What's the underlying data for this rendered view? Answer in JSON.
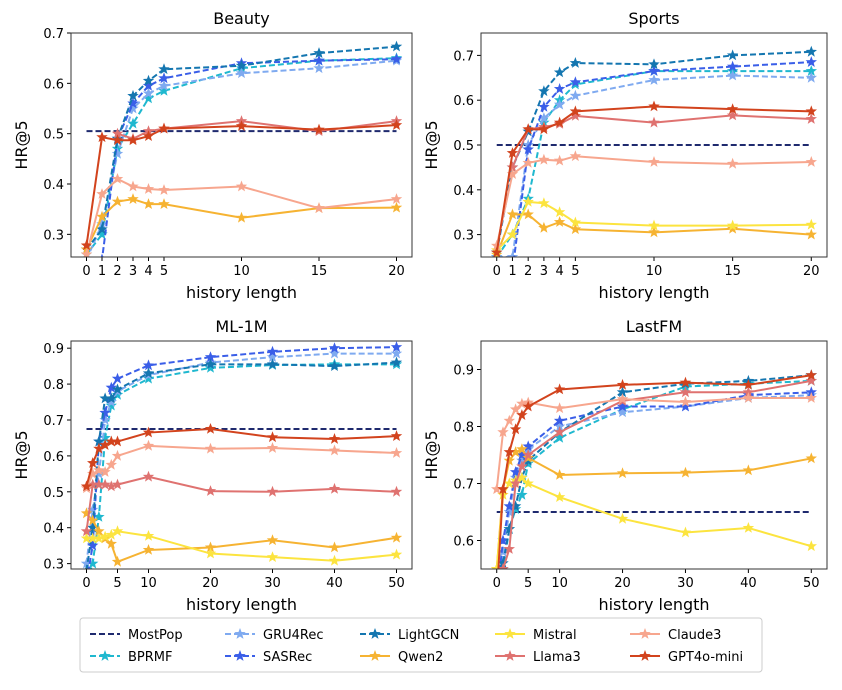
{
  "chart_data": [
    {
      "type": "line",
      "title": "Beauty",
      "xlabel": "history length",
      "ylabel": "HR@5",
      "x": [
        0,
        1,
        2,
        3,
        4,
        5,
        10,
        15,
        20
      ],
      "xticks": [
        0,
        1,
        2,
        3,
        4,
        5,
        10,
        15,
        20
      ],
      "xlim": [
        -1,
        21
      ],
      "yticks": [
        0.3,
        0.4,
        0.5,
        0.6,
        0.7
      ],
      "ylim": [
        0.255,
        0.7
      ],
      "series": [
        {
          "name": "MostPop",
          "values": [
            0.505,
            0.505,
            0.505,
            0.505,
            0.505,
            0.505,
            0.505,
            0.505,
            0.505
          ]
        },
        {
          "name": "BPRMF",
          "values": [
            0.26,
            0.3,
            0.47,
            0.52,
            0.57,
            0.585,
            0.63,
            0.645,
            0.65
          ]
        },
        {
          "name": "GRU4Rec",
          "values": [
            0.25,
            0.32,
            0.46,
            0.55,
            0.58,
            0.595,
            0.62,
            0.63,
            0.645
          ]
        },
        {
          "name": "SASRec",
          "values": [
            0.2,
            0.25,
            0.49,
            0.56,
            0.595,
            0.61,
            0.64,
            0.645,
            0.648
          ]
        },
        {
          "name": "LightGCN",
          "values": [
            0.27,
            0.31,
            0.49,
            0.575,
            0.605,
            0.628,
            0.635,
            0.66,
            0.673
          ]
        },
        {
          "name": "Qwen2",
          "values": [
            0.27,
            0.335,
            0.365,
            0.37,
            0.36,
            0.36,
            0.333,
            0.352,
            0.353
          ]
        },
        {
          "name": "Mistral",
          "values": [
            null,
            null,
            null,
            null,
            null,
            null,
            null,
            null,
            null
          ]
        },
        {
          "name": "Llama3",
          "values": [
            null,
            null,
            0.5,
            0.49,
            0.505,
            0.51,
            0.525,
            0.505,
            0.525
          ]
        },
        {
          "name": "Claude3",
          "values": [
            0.26,
            0.38,
            0.41,
            0.395,
            0.39,
            0.388,
            0.395,
            0.352,
            0.37
          ]
        },
        {
          "name": "GPT4o-mini",
          "values": [
            0.278,
            0.493,
            0.487,
            0.487,
            0.495,
            0.51,
            0.515,
            0.508,
            0.517
          ]
        }
      ]
    },
    {
      "type": "line",
      "title": "Sports",
      "xlabel": "history length",
      "ylabel": "HR@5",
      "x": [
        0,
        1,
        2,
        3,
        4,
        5,
        10,
        15,
        20
      ],
      "xticks": [
        0,
        1,
        2,
        3,
        4,
        5,
        10,
        15,
        20
      ],
      "xlim": [
        -1,
        21
      ],
      "yticks": [
        0.3,
        0.4,
        0.5,
        0.6,
        0.7
      ],
      "ylim": [
        0.25,
        0.75
      ],
      "series": [
        {
          "name": "MostPop",
          "values": [
            0.5,
            0.5,
            0.5,
            0.5,
            0.5,
            0.5,
            0.5,
            0.5,
            0.5
          ]
        },
        {
          "name": "BPRMF",
          "values": [
            0.25,
            0.3,
            0.38,
            0.55,
            0.6,
            0.635,
            0.665,
            0.665,
            0.665
          ]
        },
        {
          "name": "GRU4Rec",
          "values": [
            0.25,
            0.25,
            0.5,
            0.56,
            0.59,
            0.61,
            0.645,
            0.655,
            0.65
          ]
        },
        {
          "name": "SASRec",
          "values": [
            0.2,
            0.22,
            0.49,
            0.585,
            0.625,
            0.64,
            0.665,
            0.675,
            0.685
          ]
        },
        {
          "name": "LightGCN",
          "values": [
            0.26,
            0.45,
            0.53,
            0.62,
            0.662,
            0.683,
            0.68,
            0.7,
            0.708
          ]
        },
        {
          "name": "Qwen2",
          "values": [
            0.255,
            0.345,
            0.345,
            0.315,
            0.328,
            0.312,
            0.305,
            0.313,
            0.3
          ]
        },
        {
          "name": "Mistral",
          "values": [
            0.265,
            0.3,
            0.373,
            0.37,
            0.35,
            0.327,
            0.32,
            0.32,
            0.322
          ]
        },
        {
          "name": "Llama3",
          "values": [
            null,
            0.45,
            0.535,
            0.54,
            0.547,
            0.565,
            0.55,
            0.566,
            0.558
          ]
        },
        {
          "name": "Claude3",
          "values": [
            0.275,
            0.435,
            0.46,
            0.467,
            0.465,
            0.475,
            0.462,
            0.458,
            0.462
          ]
        },
        {
          "name": "GPT4o-mini",
          "values": [
            0.26,
            0.482,
            0.535,
            0.535,
            0.55,
            0.575,
            0.586,
            0.58,
            0.575
          ]
        }
      ]
    },
    {
      "type": "line",
      "title": "ML-1M",
      "xlabel": "history length",
      "ylabel": "HR@5",
      "x": [
        0,
        1,
        2,
        3,
        4,
        5,
        10,
        20,
        30,
        40,
        50
      ],
      "xticks": [
        0,
        5,
        10,
        20,
        30,
        40,
        50
      ],
      "xlim": [
        -2.5,
        52.5
      ],
      "yticks": [
        0.3,
        0.4,
        0.5,
        0.6,
        0.7,
        0.8,
        0.9
      ],
      "ylim": [
        0.285,
        0.92
      ],
      "series": [
        {
          "name": "MostPop",
          "values": [
            0.675,
            0.675,
            0.675,
            0.675,
            0.675,
            0.675,
            0.675,
            0.675,
            0.675,
            0.675,
            0.675
          ]
        },
        {
          "name": "BPRMF",
          "values": [
            0.25,
            0.3,
            0.43,
            0.65,
            0.74,
            0.77,
            0.815,
            0.845,
            0.853,
            0.855,
            0.855
          ]
        },
        {
          "name": "GRU4Rec",
          "values": [
            0.3,
            0.45,
            0.55,
            0.7,
            0.75,
            0.78,
            0.825,
            0.86,
            0.875,
            0.885,
            0.885
          ]
        },
        {
          "name": "SASRec",
          "values": [
            0.25,
            0.35,
            0.64,
            0.72,
            0.79,
            0.815,
            0.852,
            0.875,
            0.89,
            0.9,
            0.903
          ]
        },
        {
          "name": "LightGCN",
          "values": [
            0.28,
            0.4,
            0.64,
            0.76,
            0.76,
            0.785,
            0.83,
            0.855,
            0.855,
            0.85,
            0.86
          ]
        },
        {
          "name": "Qwen2",
          "values": [
            0.44,
            0.42,
            0.39,
            0.37,
            0.355,
            0.305,
            0.338,
            0.345,
            0.365,
            0.345,
            0.372
          ]
        },
        {
          "name": "Mistral",
          "values": [
            0.37,
            0.37,
            0.37,
            0.375,
            0.38,
            0.39,
            0.377,
            0.328,
            0.318,
            0.308,
            0.325
          ]
        },
        {
          "name": "Llama3",
          "values": [
            0.39,
            0.52,
            0.52,
            0.52,
            0.515,
            0.52,
            0.542,
            0.502,
            0.5,
            0.508,
            0.5
          ]
        },
        {
          "name": "Claude3",
          "values": [
            0.51,
            0.55,
            0.56,
            0.555,
            0.575,
            0.6,
            0.628,
            0.62,
            0.622,
            0.615,
            0.608
          ]
        },
        {
          "name": "GPT4o-mini",
          "values": [
            0.515,
            0.58,
            0.62,
            0.63,
            0.64,
            0.64,
            0.665,
            0.675,
            0.652,
            0.647,
            0.655
          ]
        }
      ]
    },
    {
      "type": "line",
      "title": "LastFM",
      "xlabel": "history length",
      "ylabel": "HR@5",
      "x": [
        0,
        1,
        2,
        3,
        4,
        5,
        10,
        20,
        30,
        40,
        50
      ],
      "xticks": [
        0,
        5,
        10,
        20,
        30,
        40,
        50
      ],
      "xlim": [
        -2.5,
        52.5
      ],
      "yticks": [
        0.6,
        0.7,
        0.8,
        0.9
      ],
      "ylim": [
        0.55,
        0.95
      ],
      "series": [
        {
          "name": "MostPop",
          "values": [
            0.65,
            0.65,
            0.65,
            0.65,
            0.65,
            0.65,
            0.65,
            0.65,
            0.65,
            0.65,
            0.65
          ]
        },
        {
          "name": "BPRMF",
          "values": [
            0.5,
            0.55,
            0.62,
            0.655,
            0.68,
            0.735,
            0.78,
            0.83,
            0.87,
            0.875,
            0.88
          ]
        },
        {
          "name": "GRU4Rec",
          "values": [
            0.5,
            0.58,
            0.65,
            0.71,
            0.74,
            0.76,
            0.8,
            0.825,
            0.835,
            0.85,
            0.855
          ]
        },
        {
          "name": "SASRec",
          "values": [
            0.5,
            0.6,
            0.66,
            0.72,
            0.75,
            0.765,
            0.81,
            0.835,
            0.835,
            0.855,
            0.86
          ]
        },
        {
          "name": "LightGCN",
          "values": [
            0.5,
            0.56,
            0.62,
            0.66,
            0.71,
            0.74,
            0.79,
            0.86,
            0.875,
            0.88,
            0.89
          ]
        },
        {
          "name": "Qwen2",
          "values": [
            0.55,
            0.69,
            0.74,
            0.755,
            0.76,
            0.745,
            0.715,
            0.718,
            0.719,
            0.723,
            0.744
          ]
        },
        {
          "name": "Mistral",
          "values": [
            0.55,
            0.68,
            0.7,
            0.705,
            0.71,
            0.7,
            0.676,
            0.638,
            0.614,
            0.622,
            0.59
          ]
        },
        {
          "name": "Llama3",
          "values": [
            0.5,
            0.55,
            0.585,
            0.7,
            0.73,
            0.75,
            0.79,
            0.845,
            0.86,
            0.86,
            0.88
          ]
        },
        {
          "name": "Claude3",
          "values": [
            0.69,
            0.79,
            0.81,
            0.83,
            0.84,
            0.842,
            0.832,
            0.848,
            0.843,
            0.85,
            0.85
          ]
        },
        {
          "name": "GPT4o-mini",
          "values": [
            0.5,
            0.69,
            0.755,
            0.795,
            0.82,
            0.835,
            0.865,
            0.873,
            0.877,
            0.873,
            0.89
          ]
        }
      ]
    }
  ],
  "legend": {
    "placement": "bottom",
    "items": [
      {
        "name": "MostPop",
        "color": "#1f2a6e",
        "dashed": true,
        "marker": false
      },
      {
        "name": "BPRMF",
        "color": "#1fb8cf",
        "dashed": true,
        "marker": true
      },
      {
        "name": "GRU4Rec",
        "color": "#7faaf0",
        "dashed": true,
        "marker": true
      },
      {
        "name": "SASRec",
        "color": "#3a5ee8",
        "dashed": true,
        "marker": true
      },
      {
        "name": "LightGCN",
        "color": "#1476b0",
        "dashed": true,
        "marker": true
      },
      {
        "name": "Qwen2",
        "color": "#f6b332",
        "dashed": false,
        "marker": true
      },
      {
        "name": "Mistral",
        "color": "#fce43f",
        "dashed": false,
        "marker": true
      },
      {
        "name": "Llama3",
        "color": "#df7270",
        "dashed": false,
        "marker": true
      },
      {
        "name": "Claude3",
        "color": "#f7a68e",
        "dashed": false,
        "marker": true
      },
      {
        "name": "GPT4o-mini",
        "color": "#d2431d",
        "dashed": false,
        "marker": true
      }
    ]
  }
}
